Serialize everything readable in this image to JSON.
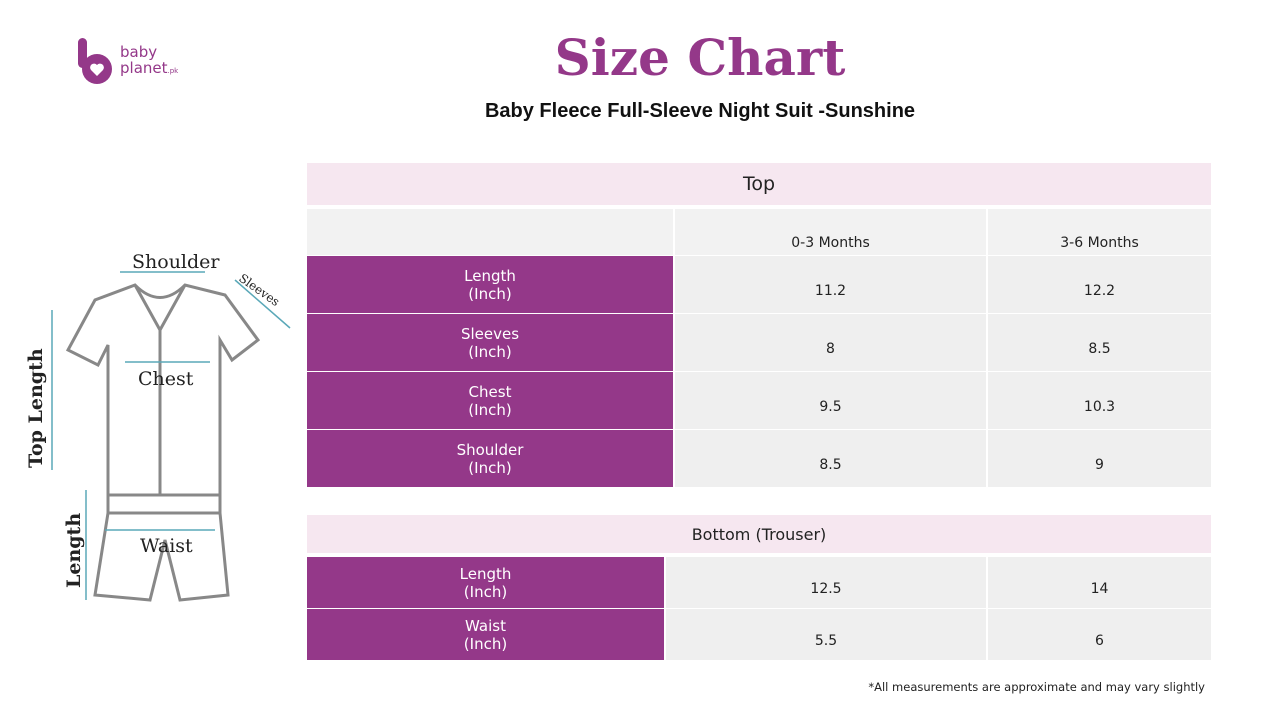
{
  "brand": {
    "line1": "baby",
    "line2": "planet",
    "suffix": ".pk",
    "color": "#943889"
  },
  "title": "Size Chart",
  "subtitle": "Baby Fleece Full-Sleeve Night Suit -Sunshine",
  "illustration": {
    "labels": [
      "Shoulder",
      "Sleeves",
      "Chest",
      "Top Length",
      "Waist",
      "Length"
    ]
  },
  "top": {
    "heading": "Top",
    "columns": [
      "",
      "0-3 Months",
      "3-6 Months"
    ],
    "rows": [
      {
        "name": "Length",
        "unit": "(Inch)",
        "values": [
          "11.2",
          "12.2"
        ]
      },
      {
        "name": "Sleeves",
        "unit": "(Inch)",
        "values": [
          "8",
          "8.5"
        ]
      },
      {
        "name": "Chest",
        "unit": "(Inch)",
        "values": [
          "9.5",
          "10.3"
        ]
      },
      {
        "name": "Shoulder",
        "unit": "(Inch)",
        "values": [
          "8.5",
          "9"
        ]
      }
    ]
  },
  "bottom": {
    "heading": "Bottom (Trouser)",
    "rows": [
      {
        "name": "Length",
        "unit": "(Inch)",
        "values": [
          "12.5",
          "14"
        ]
      },
      {
        "name": "Waist",
        "unit": "(Inch)",
        "values": [
          "5.5",
          "6"
        ]
      }
    ]
  },
  "note": "*All measurements are approximate and may vary slightly",
  "colors": {
    "accent": "#943889",
    "band": "#f6e7f0",
    "cell": "#efefef"
  }
}
